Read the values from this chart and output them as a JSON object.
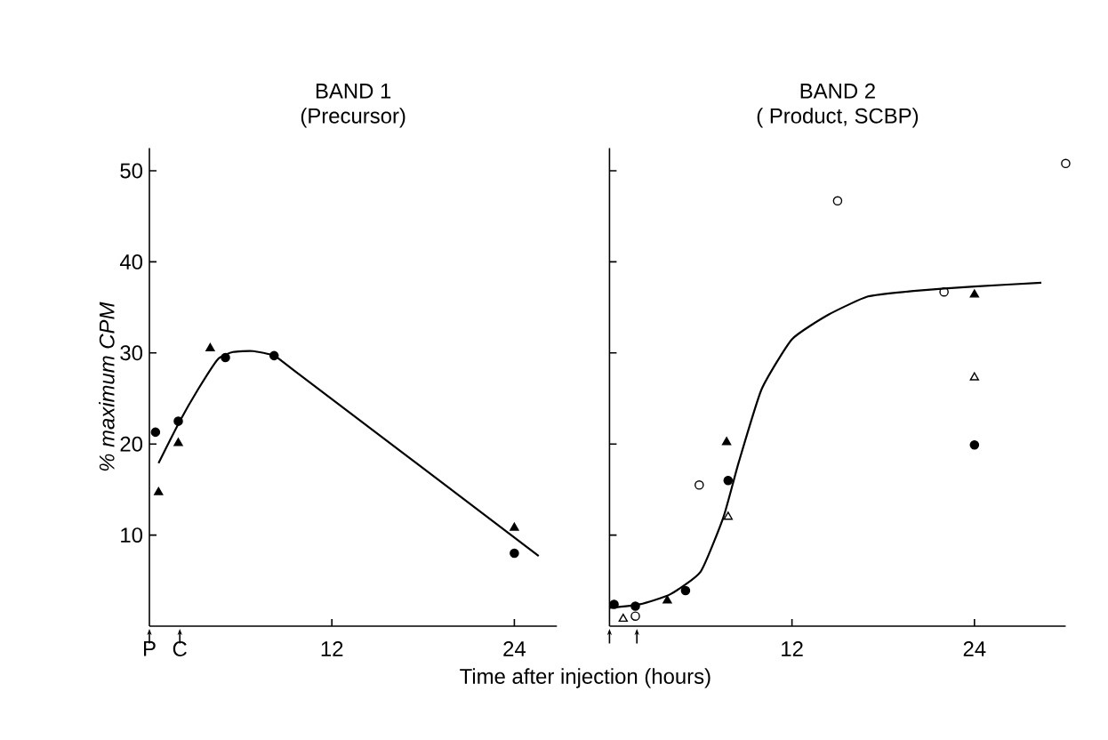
{
  "chart_data": [
    {
      "type": "scatter",
      "title": "BAND 1",
      "subtitle": "(Precursor)",
      "xlabel": "Time after injection (hours)",
      "ylabel": "% maximum CPM",
      "xlim": [
        0,
        26.8
      ],
      "ylim": [
        0,
        52.5
      ],
      "xticks": [
        {
          "value": 0,
          "label": "P"
        },
        {
          "value": 2,
          "label": "C"
        },
        12,
        24
      ],
      "yticks": [
        10,
        20,
        30,
        40,
        50
      ],
      "series": [
        {
          "color": "#000000",
          "marker": "circle",
          "x": [
            0.4,
            1.9,
            5.0,
            8.2,
            24
          ],
          "values": [
            21.3,
            22.5,
            29.5,
            29.7,
            8.0
          ]
        },
        {
          "color": "#000000",
          "marker": "triangle",
          "x": [
            0.6,
            1.9,
            4.0,
            24
          ],
          "values": [
            14.7,
            20.1,
            30.5,
            10.8
          ]
        },
        {
          "type": "line",
          "color": "#000000",
          "marker": "none",
          "x": [
            0.6,
            2.0,
            3.2,
            4.5,
            5.5,
            6.8,
            8.2,
            9.5,
            25.6
          ],
          "values": [
            17.9,
            22.5,
            26.0,
            29.3,
            30.1,
            30.2,
            29.7,
            28.1,
            7.7
          ]
        }
      ]
    },
    {
      "type": "scatter",
      "title": "BAND 2",
      "subtitle": "( Product, SCBP)",
      "tick_labels": "x",
      "xlim": [
        0,
        30
      ],
      "ylim": [
        0,
        52.5
      ],
      "xticks": [
        {
          "value": 0,
          "label": null
        },
        {
          "value": 1.8,
          "label": null
        },
        12,
        24
      ],
      "yticks": [
        10,
        20,
        30,
        40,
        50
      ],
      "series": [
        {
          "color": "#000000",
          "marker": "circle",
          "x": [
            0.3,
            1.7,
            5.0,
            7.8,
            24
          ],
          "values": [
            2.4,
            2.2,
            3.9,
            16.0,
            19.9
          ]
        },
        {
          "color": "#000000",
          "marker": "triangle",
          "x": [
            3.8,
            7.7,
            24
          ],
          "values": [
            2.8,
            20.2,
            36.4
          ]
        },
        {
          "color": "#000000",
          "marker": "circle-open",
          "x": [
            1.7,
            5.9,
            15.0,
            22.0,
            30.0
          ],
          "values": [
            1.1,
            15.5,
            46.7,
            36.7,
            50.8
          ]
        },
        {
          "color": "#000000",
          "marker": "triangle-open",
          "x": [
            0.9,
            7.8,
            24
          ],
          "values": [
            0.8,
            12.0,
            27.3
          ]
        },
        {
          "type": "line",
          "color": "#000000",
          "marker": "none",
          "x": [
            0,
            2,
            4,
            6,
            7.5,
            8.5,
            10,
            12,
            14.4,
            17,
            20,
            24,
            28.4
          ],
          "values": [
            2.0,
            2.4,
            3.5,
            6.0,
            12.0,
            18.0,
            26.0,
            31.5,
            34.2,
            36.2,
            36.8,
            37.3,
            37.7
          ]
        }
      ]
    }
  ]
}
